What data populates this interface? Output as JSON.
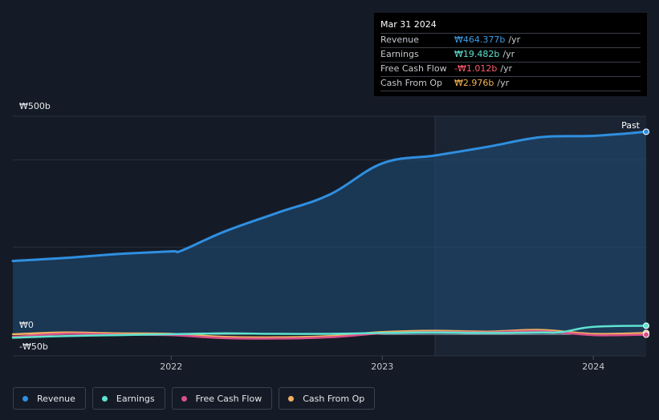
{
  "tooltip": {
    "date": "Mar 31 2024",
    "rows": [
      {
        "label": "Revenue",
        "value": "₩464.377b",
        "unit": "/yr",
        "color": "#3b9ce6"
      },
      {
        "label": "Earnings",
        "value": "₩19.482b",
        "unit": "/yr",
        "color": "#5fe3d1"
      },
      {
        "label": "Free Cash Flow",
        "value": "-₩1.012b",
        "unit": "/yr",
        "color": "#ff5b6e"
      },
      {
        "label": "Cash From Op",
        "value": "₩2.976b",
        "unit": "/yr",
        "color": "#f5b453"
      }
    ]
  },
  "legend": [
    {
      "label": "Revenue",
      "color": "#2f8fe0"
    },
    {
      "label": "Earnings",
      "color": "#5fe3d1"
    },
    {
      "label": "Free Cash Flow",
      "color": "#d94f8a"
    },
    {
      "label": "Cash From Op",
      "color": "#f0b060"
    }
  ],
  "chart_data": {
    "type": "line",
    "past_label": "Past",
    "y_tick_labels": [
      {
        "value": 500,
        "label": "₩500b"
      },
      {
        "value": 0,
        "label": "₩0"
      },
      {
        "value": -50,
        "label": "-₩50b"
      }
    ],
    "ylim": [
      -50,
      500
    ],
    "xlim": [
      2021.25,
      2024.25
    ],
    "x_ticks": [
      {
        "value": 2022.0,
        "label": "2022"
      },
      {
        "value": 2023.0,
        "label": "2023"
      },
      {
        "value": 2024.0,
        "label": "2024"
      }
    ],
    "past_start": 2023.25,
    "gridlines": [
      500,
      400,
      200,
      0
    ],
    "series": [
      {
        "name": "Revenue",
        "color": "#2f8fe0",
        "x": [
          2021.25,
          2021.5,
          2021.75,
          2022.0,
          2022.05,
          2022.25,
          2022.5,
          2022.75,
          2023.0,
          2023.25,
          2023.5,
          2023.75,
          2024.0,
          2024.25
        ],
        "y": [
          168,
          175,
          184,
          190,
          192,
          235,
          278,
          320,
          392,
          410,
          430,
          452,
          455,
          464.4
        ]
      },
      {
        "name": "Earnings",
        "color": "#5fe3d1",
        "x": [
          2021.25,
          2021.5,
          2021.75,
          2022.0,
          2022.25,
          2022.5,
          2022.75,
          2023.0,
          2023.25,
          2023.5,
          2023.75,
          2023.85,
          2024.0,
          2024.25
        ],
        "y": [
          -8,
          -4,
          -2,
          0,
          2,
          1,
          1,
          3,
          4,
          3,
          4,
          5,
          17,
          19.5
        ]
      },
      {
        "name": "Free Cash Flow",
        "color": "#d94f8a",
        "x": [
          2021.25,
          2021.5,
          2021.75,
          2022.0,
          2022.25,
          2022.5,
          2022.75,
          2023.0,
          2023.25,
          2023.5,
          2023.75,
          2024.0,
          2024.25
        ],
        "y": [
          -6,
          1,
          -1,
          -2,
          -9,
          -10,
          -7,
          2,
          5,
          4,
          7,
          -2,
          -1
        ]
      },
      {
        "name": "Cash From Op",
        "color": "#f0b060",
        "x": [
          2021.25,
          2021.5,
          2021.75,
          2022.0,
          2022.25,
          2022.5,
          2022.75,
          2023.0,
          2023.25,
          2023.5,
          2023.75,
          2024.0,
          2024.25
        ],
        "y": [
          0,
          4,
          2,
          1,
          -6,
          -7,
          -4,
          5,
          8,
          6,
          10,
          1,
          3
        ]
      }
    ]
  }
}
